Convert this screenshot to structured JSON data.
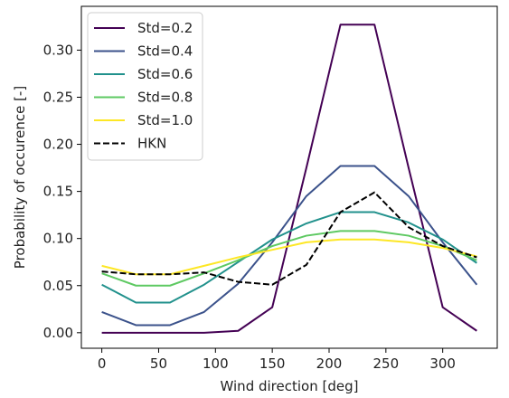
{
  "chart_data": {
    "type": "line",
    "xlabel": "Wind direction [deg]",
    "ylabel": "Probability of occurence [-]",
    "xlim": [
      -18,
      348
    ],
    "ylim": [
      -0.0165,
      0.3465
    ],
    "xticks": [
      0,
      50,
      100,
      150,
      200,
      250,
      300
    ],
    "yticks": [
      0.0,
      0.05,
      0.1,
      0.15,
      0.2,
      0.25,
      0.3
    ],
    "ytick_labels": [
      "0.00",
      "0.05",
      "0.10",
      "0.15",
      "0.20",
      "0.25",
      "0.30"
    ],
    "grid": false,
    "legend_position": "top-left",
    "x": [
      0,
      30,
      60,
      90,
      120,
      150,
      180,
      210,
      240,
      270,
      300,
      330
    ],
    "series": [
      {
        "name": "Std=0.2",
        "color": "#440154",
        "dash": "solid",
        "values": [
          0.0,
          0.0,
          0.0,
          0.0,
          0.002,
          0.027,
          0.175,
          0.327,
          0.327,
          0.175,
          0.027,
          0.002
        ]
      },
      {
        "name": "Std=0.4",
        "color": "#3b528b",
        "dash": "solid",
        "values": [
          0.022,
          0.008,
          0.008,
          0.022,
          0.052,
          0.096,
          0.145,
          0.177,
          0.177,
          0.145,
          0.096,
          0.051
        ]
      },
      {
        "name": "Std=0.6",
        "color": "#21918c",
        "dash": "solid",
        "values": [
          0.051,
          0.032,
          0.032,
          0.051,
          0.075,
          0.099,
          0.116,
          0.128,
          0.128,
          0.117,
          0.099,
          0.074
        ]
      },
      {
        "name": "Std=0.8",
        "color": "#5ec962",
        "dash": "solid",
        "values": [
          0.063,
          0.05,
          0.05,
          0.063,
          0.077,
          0.092,
          0.103,
          0.108,
          0.108,
          0.103,
          0.092,
          0.077
        ]
      },
      {
        "name": "Std=1.0",
        "color": "#fde725",
        "dash": "solid",
        "values": [
          0.071,
          0.062,
          0.062,
          0.071,
          0.08,
          0.088,
          0.096,
          0.099,
          0.099,
          0.096,
          0.09,
          0.081
        ]
      },
      {
        "name": "HKN",
        "color": "#000000",
        "dash": "dashed",
        "values": [
          0.065,
          0.062,
          0.062,
          0.064,
          0.054,
          0.051,
          0.072,
          0.128,
          0.149,
          0.112,
          0.092,
          0.08
        ]
      }
    ]
  }
}
